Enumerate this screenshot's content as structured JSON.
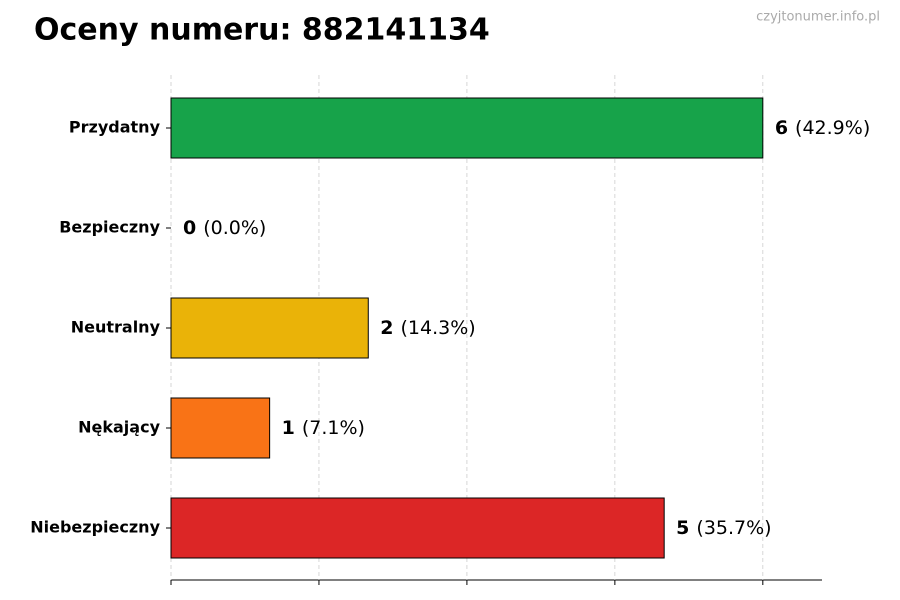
{
  "chart_data": {
    "type": "barh",
    "title": "Oceny numeru: 882141134",
    "watermark": "czyjtonumer.info.pl",
    "categories": [
      "Przydatny",
      "Bezpieczny",
      "Neutralny",
      "Nękający",
      "Niebezpieczny"
    ],
    "values": [
      6,
      0,
      2,
      1,
      5
    ],
    "percent_labels": [
      "(42.9%)",
      "(0.0%)",
      "(14.3%)",
      "(7.1%)",
      "(35.7%)"
    ],
    "colors": [
      "#17a34a",
      null,
      "#eab308",
      "#f97316",
      "#dc2626"
    ],
    "xlim": [
      0,
      6.6
    ],
    "xticks": [
      0,
      1.5,
      3,
      4.5,
      6
    ],
    "grid": true
  }
}
